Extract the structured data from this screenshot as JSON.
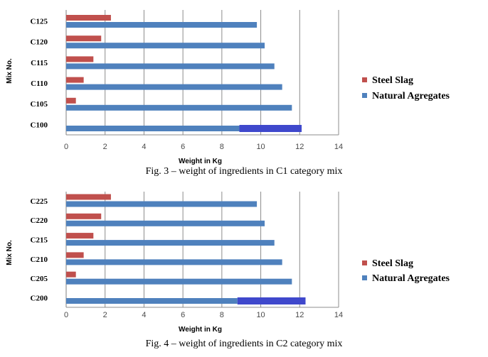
{
  "chart_data": [
    {
      "type": "bar",
      "orientation": "horizontal",
      "stacked": false,
      "categories": [
        "C100",
        "C105",
        "C110",
        "C115",
        "C120",
        "C125"
      ],
      "series": [
        {
          "name": "Steel Slag",
          "color": "#c0504d",
          "values": [
            0,
            0.5,
            0.9,
            1.4,
            1.8,
            2.3
          ]
        },
        {
          "name": "Natural Agregates",
          "color": "#4f81bd",
          "values": [
            8.9,
            11.6,
            11.1,
            10.7,
            10.2,
            9.8
          ]
        }
      ],
      "highlight": {
        "category": "C100",
        "from": 8.9,
        "to": 12.1,
        "color": "#3f48cc"
      },
      "xlabel": "Weight in Kg",
      "ylabel": "Mix No.",
      "xlim": [
        0,
        14
      ],
      "xticks": [
        "0",
        "2",
        "4",
        "6",
        "8",
        "10",
        "12",
        "14"
      ],
      "grid": true,
      "legend": "right",
      "caption": "Fig. 3 – weight of ingredients in C1 category mix"
    },
    {
      "type": "bar",
      "orientation": "horizontal",
      "stacked": false,
      "categories": [
        "C200",
        "C205",
        "C210",
        "C215",
        "C220",
        "C225"
      ],
      "series": [
        {
          "name": "Steel Slag",
          "color": "#c0504d",
          "values": [
            0,
            0.5,
            0.9,
            1.4,
            1.8,
            2.3
          ]
        },
        {
          "name": "Natural Agregates",
          "color": "#4f81bd",
          "values": [
            8.8,
            11.6,
            11.1,
            10.7,
            10.2,
            9.8
          ]
        }
      ],
      "highlight": {
        "category": "C200",
        "from": 8.8,
        "to": 12.3,
        "color": "#3f48cc"
      },
      "xlabel": "Weight in Kg",
      "ylabel": "Mix No.",
      "xlim": [
        0,
        14
      ],
      "xticks": [
        "0",
        "2",
        "4",
        "6",
        "8",
        "10",
        "12",
        "14"
      ],
      "grid": true,
      "legend": "right",
      "caption": "Fig. 4 – weight of ingredients in C2 category mix"
    }
  ]
}
